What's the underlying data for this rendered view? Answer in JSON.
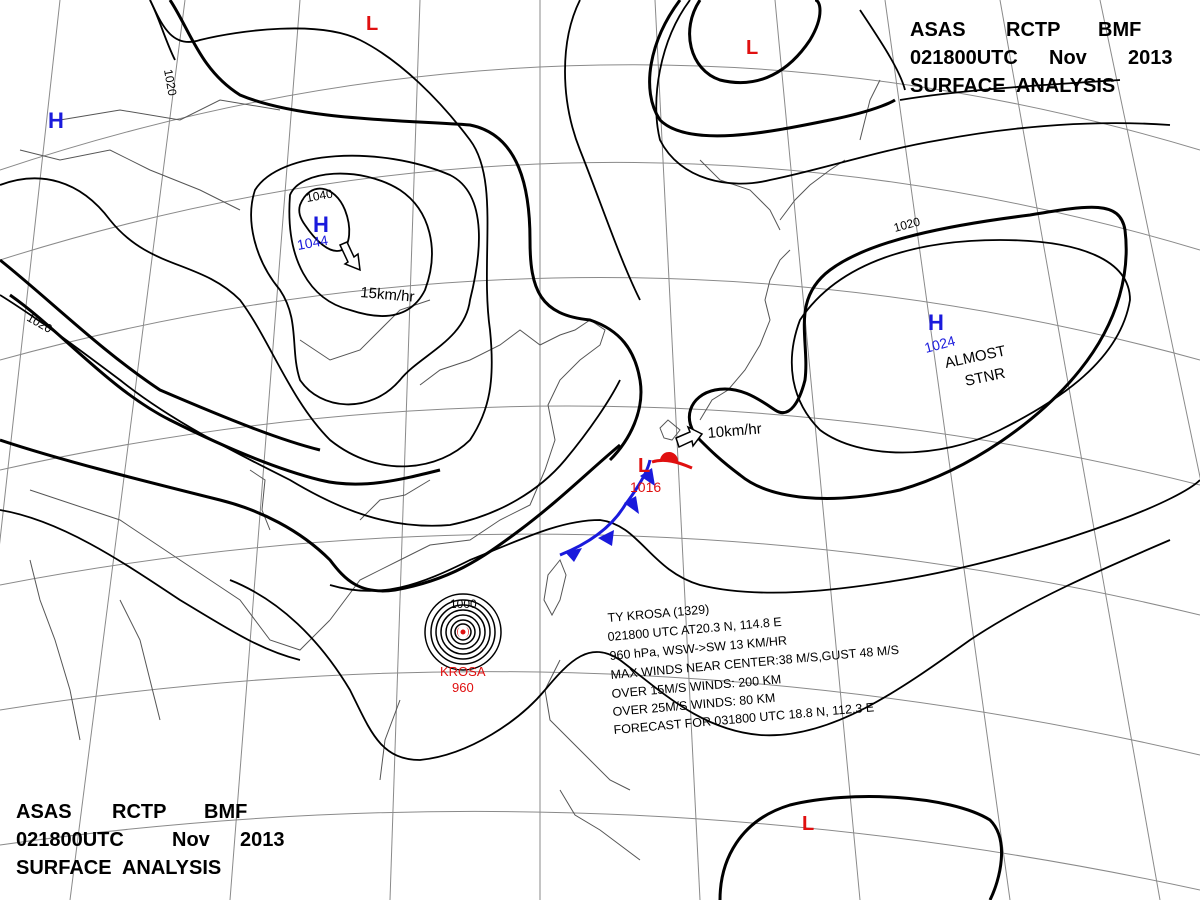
{
  "header": {
    "line1_agency": "ASAS",
    "line1_station": "RCTP",
    "line1_office": "BMF",
    "line2_time": "021800UTC",
    "line2_month": "Nov",
    "line2_year": "2013",
    "line3": "SURFACE  ANALYSIS"
  },
  "isobar_labels": {
    "nw_1020": "1020",
    "top_1020": "1020",
    "high_1040": "1040",
    "east_1020": "1020",
    "typhoon_1000": "1000"
  },
  "pressure_centers": [
    {
      "id": "high-mongolia",
      "symbol": "H",
      "value": "1044",
      "color": "#1a1adc"
    },
    {
      "id": "high-nw-edge",
      "symbol": "H",
      "value": "",
      "color": "#1a1adc"
    },
    {
      "id": "high-pacific",
      "symbol": "H",
      "value": "1024",
      "color": "#1a1adc"
    },
    {
      "id": "low-north",
      "symbol": "L",
      "value": "",
      "color": "#e01010"
    },
    {
      "id": "low-kamchatka",
      "symbol": "L",
      "value": "",
      "color": "#e01010"
    },
    {
      "id": "low-frontal",
      "symbol": "L",
      "value": "1016",
      "color": "#e01010"
    },
    {
      "id": "low-southeast",
      "symbol": "L",
      "value": "",
      "color": "#e01010"
    }
  ],
  "motion_labels": {
    "high_mongolia": "15km/hr",
    "frontal_low": "10km/hr",
    "pacific_high_line1": "ALMOST",
    "pacific_high_line2": "STNR"
  },
  "typhoon": {
    "name": "KROSA",
    "pressure": "960",
    "color": "#e01010"
  },
  "typhoon_bulletin": {
    "line1": "TY  KROSA  (1329)",
    "line2": "021800 UTC  AT20.3 N, 114.8 E",
    "line3": "960 hPa, WSW->SW  13 KM/HR",
    "line4": "MAX WINDS NEAR CENTER:38 M/S,GUST 48 M/S",
    "line5": "OVER 15M/S WINDS: 200 KM",
    "line6": "OVER 25M/S WINDS: 80 KM",
    "line7": "FORECAST FOR 031800 UTC 18.8 N, 112.3 E"
  },
  "colors": {
    "high": "#1a1adc",
    "low": "#e01010",
    "cold_front": "#1a1adc",
    "warm_front": "#e01010",
    "isobar": "#000000",
    "grid": "#8a8a8a",
    "coast": "#555555"
  }
}
